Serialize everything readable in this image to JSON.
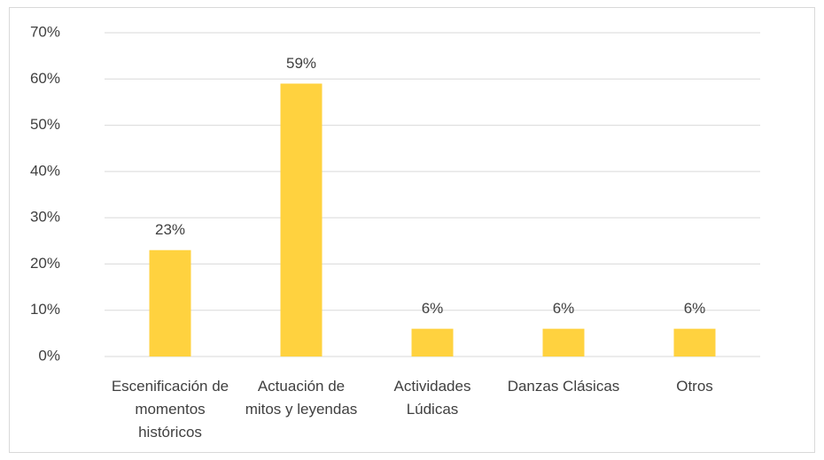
{
  "chart_data": {
    "type": "bar",
    "categories": [
      "Escenificación de momentos históricos",
      "Actuación de mitos y leyendas",
      "Actividades Lúdicas",
      "Danzas Clásicas",
      "Otros"
    ],
    "values": [
      23,
      59,
      6,
      6,
      6
    ],
    "value_labels": [
      "23%",
      "59%",
      "6%",
      "6%",
      "6%"
    ],
    "color": "#ffd23f",
    "ylim": [
      0,
      70
    ],
    "yticks": [
      {
        "value": 0,
        "label": "0%"
      },
      {
        "value": 10,
        "label": "10%"
      },
      {
        "value": 20,
        "label": "20%"
      },
      {
        "value": 30,
        "label": "30%"
      },
      {
        "value": 40,
        "label": "40%"
      },
      {
        "value": 50,
        "label": "50%"
      },
      {
        "value": 60,
        "label": "60%"
      },
      {
        "value": 70,
        "label": "70%"
      }
    ],
    "grid": true
  }
}
